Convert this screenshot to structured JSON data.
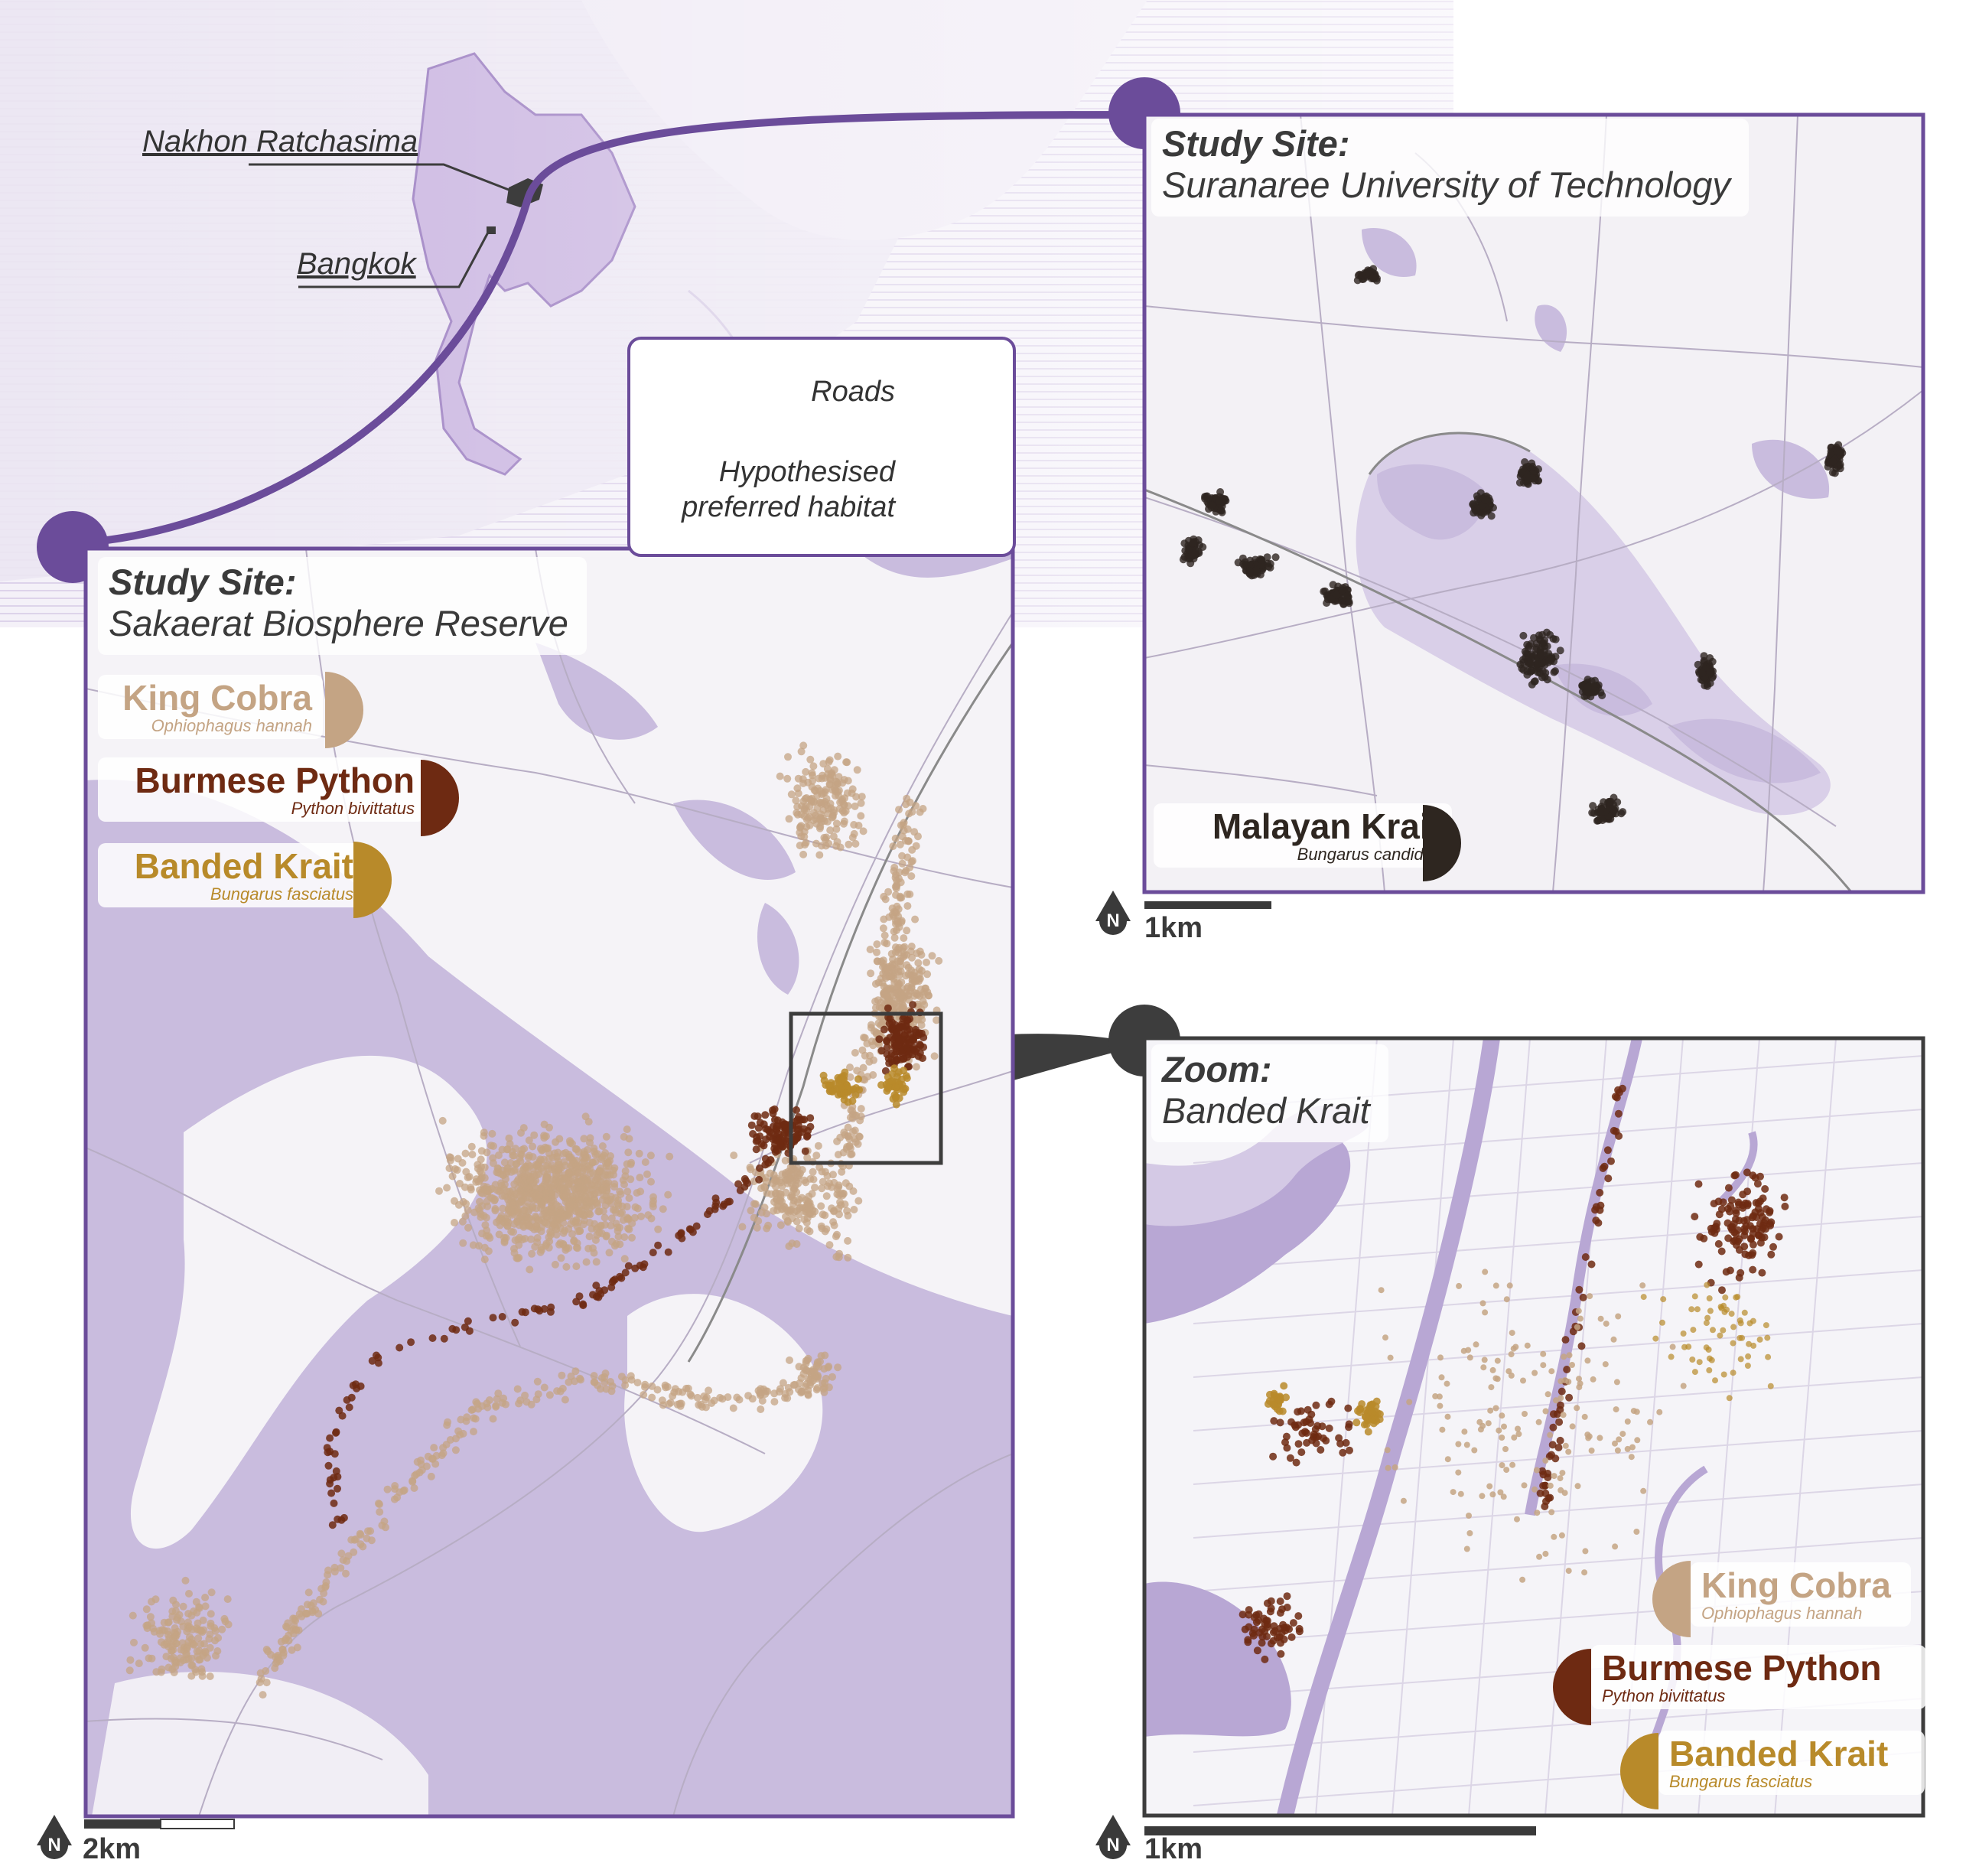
{
  "overview": {
    "cities": [
      "Nakhon Ratchasima",
      "Bangkok"
    ],
    "legend": {
      "roads_label": "Roads",
      "habitat_label": "Hypothesised\npreferred habitat"
    }
  },
  "sakaerat": {
    "title_bold": "Study Site:",
    "title_sub": "Sakaerat Biosphere Reserve",
    "species": [
      {
        "common": "King Cobra",
        "latin": "Ophiophagus hannah",
        "color": "#c4a484"
      },
      {
        "common": "Burmese Python",
        "latin": "Python bivittatus",
        "color": "#6e2a12"
      },
      {
        "common": "Banded Krait",
        "latin": "Bungarus fasciatus",
        "color": "#b88a2a"
      }
    ],
    "scale_label": "2km",
    "north_label": "N"
  },
  "suranaree": {
    "title_bold": "Study Site:",
    "title_sub": "Suranaree University of Technology",
    "species": {
      "common": "Malayan Krait",
      "latin": "Bungarus candidus",
      "color": "#2e2620"
    },
    "scale_label": "1km",
    "north_label": "N"
  },
  "zoom": {
    "title_bold": "Zoom:",
    "title_sub": "Banded Krait",
    "species": [
      {
        "common": "King Cobra",
        "latin": "Ophiophagus hannah",
        "color": "#c4a484"
      },
      {
        "common": "Burmese Python",
        "latin": "Python bivittatus",
        "color": "#6e2a12"
      },
      {
        "common": "Banded Krait",
        "latin": "Bungarus fasciatus",
        "color": "#b88a2a"
      }
    ],
    "scale_label": "1km",
    "north_label": "N"
  },
  "colors": {
    "accent_purple": "#6b4c9a",
    "habitat": "#c9bcde",
    "zoom_frame": "#3d3d3d"
  }
}
